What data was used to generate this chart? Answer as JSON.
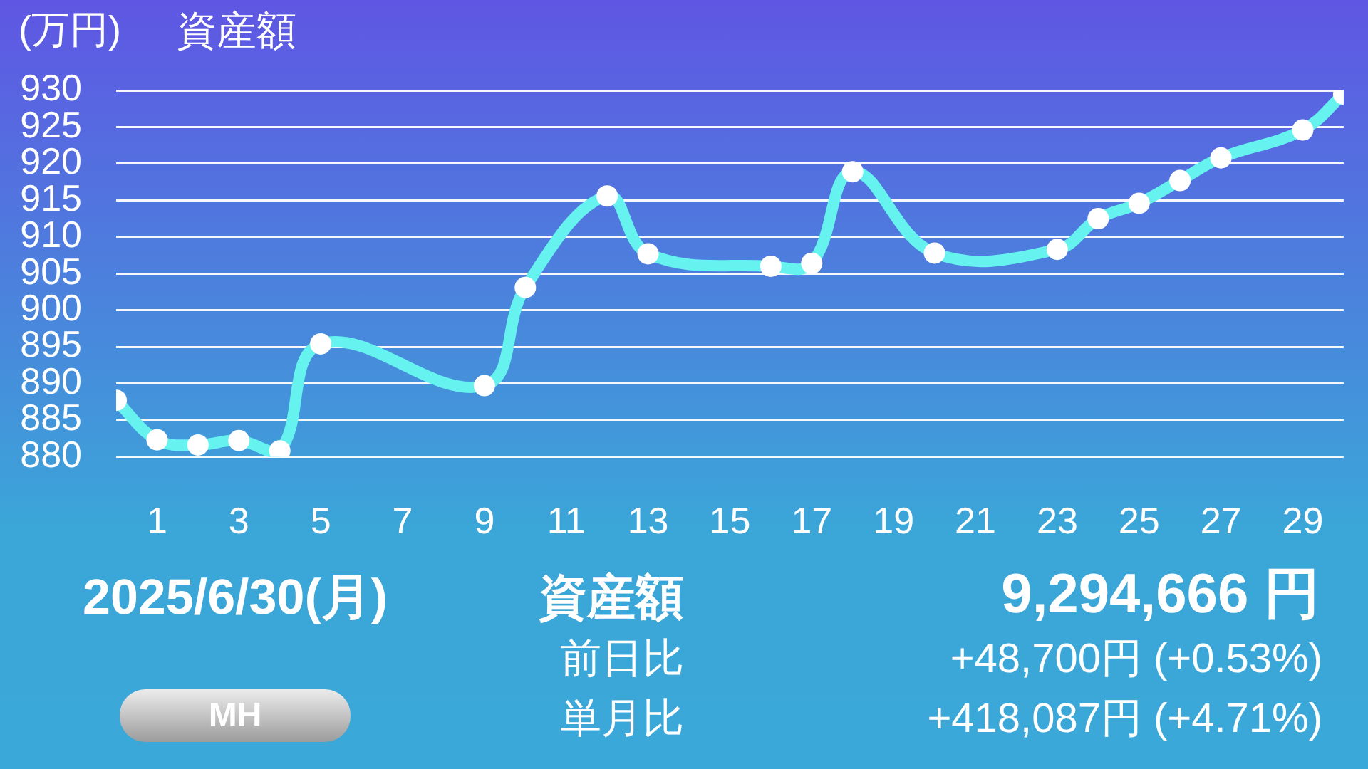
{
  "chart_data": {
    "type": "line",
    "title": "資産額",
    "ylabel": "(万円)",
    "x": [
      0,
      1,
      2,
      3,
      4,
      5,
      9,
      10,
      12,
      13,
      16,
      17,
      18,
      20,
      23,
      24,
      25,
      26,
      27,
      29,
      30
    ],
    "series": [
      {
        "color": "#66f2ee",
        "values": [
          887.7,
          882.3,
          881.6,
          882.2,
          880.8,
          895.4,
          889.7,
          903.1,
          915.6,
          907.7,
          906.0,
          906.4,
          918.9,
          907.8,
          908.3,
          912.5,
          914.6,
          917.7,
          920.8,
          924.6,
          929.5
        ]
      }
    ],
    "xlim": [
      0,
      30
    ],
    "xticks": [
      1,
      3,
      5,
      7,
      9,
      11,
      13,
      15,
      17,
      19,
      21,
      23,
      25,
      27,
      29
    ],
    "ylim": [
      880,
      930
    ],
    "yticks": [
      880,
      885,
      890,
      895,
      900,
      905,
      910,
      915,
      920,
      925,
      930
    ],
    "grid": "y",
    "marker": "circle",
    "line_style": "solid",
    "annotations": [
      "2025/6/30(月)",
      "資産額",
      "9,294,666 円",
      "前日比",
      "+48,700円 (+0.53%)",
      "単月比",
      "+418,087円 (+4.71%)",
      "MH"
    ]
  }
}
